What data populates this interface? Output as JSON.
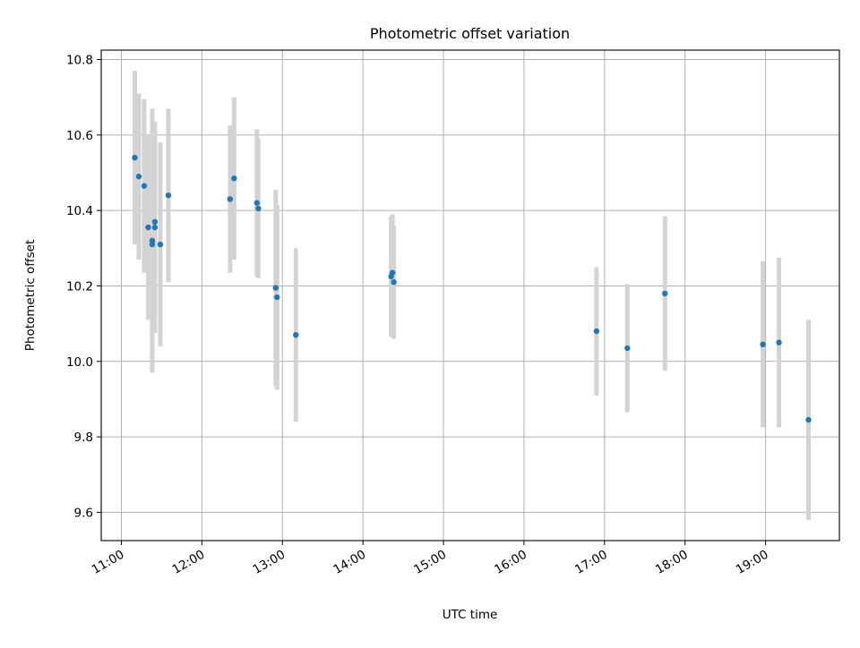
{
  "chart_data": {
    "type": "scatter",
    "title": "Photometric offset variation",
    "xlabel": "UTC time",
    "ylabel": "Photometric offset",
    "x_unit": "hours UTC",
    "xlim": [
      "10:45",
      "19:55"
    ],
    "ylim": [
      9.525,
      10.825
    ],
    "x_ticks": [
      "11:00",
      "12:00",
      "13:00",
      "14:00",
      "15:00",
      "16:00",
      "17:00",
      "18:00",
      "19:00"
    ],
    "y_ticks": [
      "9.6",
      "9.8",
      "10.0",
      "10.2",
      "10.4",
      "10.6",
      "10.8"
    ],
    "grid": true,
    "legend": "none",
    "point_color": "#1f77b4",
    "errorbar_color": "#d3d3d3",
    "points": [
      {
        "t": "11:10",
        "y": 10.54,
        "yerr": 0.23
      },
      {
        "t": "11:13",
        "y": 10.49,
        "yerr": 0.22
      },
      {
        "t": "11:17",
        "y": 10.465,
        "yerr": 0.23
      },
      {
        "t": "11:20",
        "y": 10.355,
        "yerr": 0.245
      },
      {
        "t": "11:23",
        "y": 10.31,
        "yerr": 0.2
      },
      {
        "t": "11:23",
        "y": 10.32,
        "yerr": 0.35
      },
      {
        "t": "11:25",
        "y": 10.355,
        "yerr": 0.28
      },
      {
        "t": "11:25",
        "y": 10.37,
        "yerr": 0.255
      },
      {
        "t": "11:29",
        "y": 10.31,
        "yerr": 0.27
      },
      {
        "t": "11:35",
        "y": 10.44,
        "yerr": 0.23
      },
      {
        "t": "12:21",
        "y": 10.43,
        "yerr": 0.195
      },
      {
        "t": "12:24",
        "y": 10.485,
        "yerr": 0.215
      },
      {
        "t": "12:41",
        "y": 10.42,
        "yerr": 0.195
      },
      {
        "t": "12:42",
        "y": 10.405,
        "yerr": 0.185
      },
      {
        "t": "12:55",
        "y": 10.195,
        "yerr": 0.26
      },
      {
        "t": "12:56",
        "y": 10.17,
        "yerr": 0.245
      },
      {
        "t": "13:10",
        "y": 10.07,
        "yerr": 0.23
      },
      {
        "t": "14:21",
        "y": 10.225,
        "yerr": 0.16
      },
      {
        "t": "14:22",
        "y": 10.235,
        "yerr": 0.155
      },
      {
        "t": "14:23",
        "y": 10.21,
        "yerr": 0.15
      },
      {
        "t": "16:54",
        "y": 10.08,
        "yerr": 0.17
      },
      {
        "t": "17:17",
        "y": 10.035,
        "yerr": 0.17
      },
      {
        "t": "17:45",
        "y": 10.18,
        "yerr": 0.205
      },
      {
        "t": "18:58",
        "y": 10.045,
        "yerr": 0.22
      },
      {
        "t": "19:10",
        "y": 10.05,
        "yerr": 0.225
      },
      {
        "t": "19:32",
        "y": 9.845,
        "yerr": 0.265
      }
    ]
  }
}
